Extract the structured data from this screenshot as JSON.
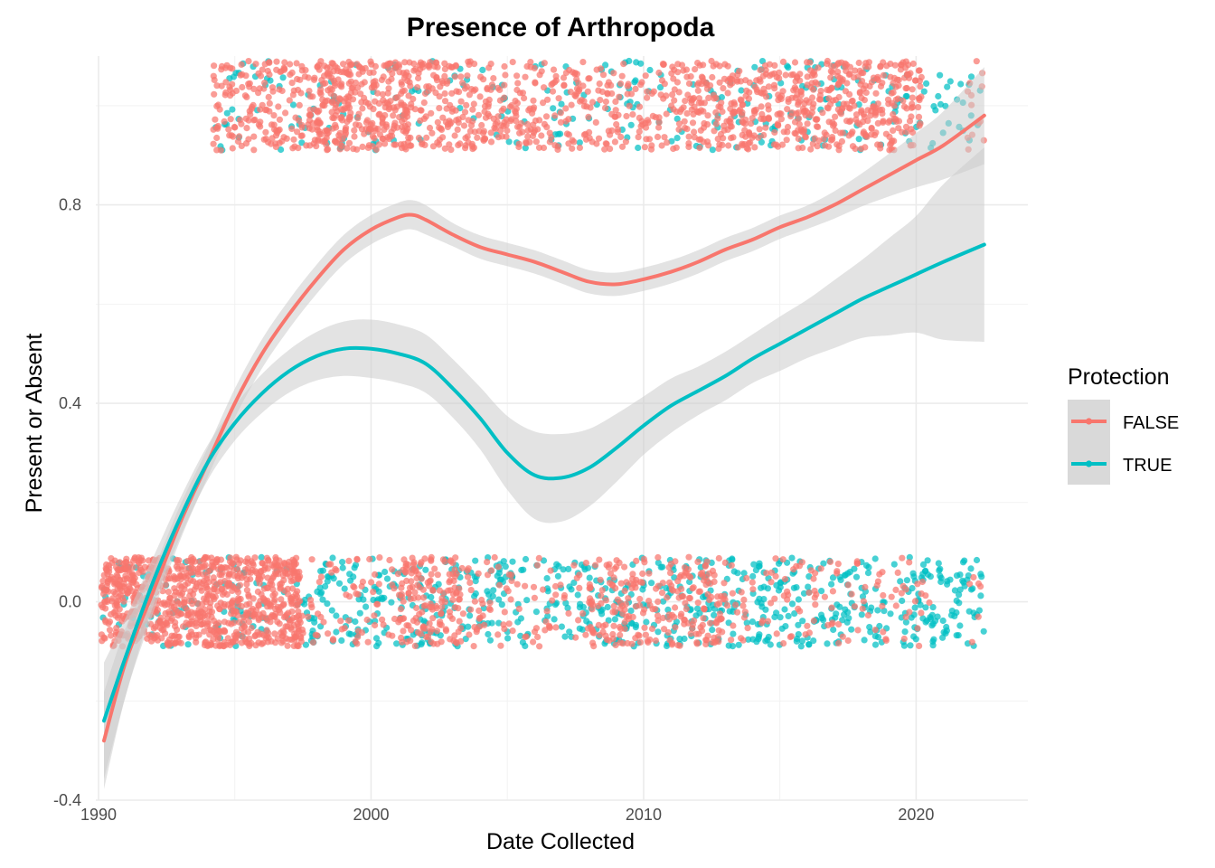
{
  "chart_data": {
    "type": "scatter",
    "title": "Presence of Arthropoda",
    "xlabel": "Date Collected",
    "ylabel": "Present or Absent",
    "xlim": [
      1989.9,
      2024.1
    ],
    "ylim": [
      -0.4,
      1.1
    ],
    "x_ticks": [
      1990,
      2000,
      2010,
      2020
    ],
    "x_tick_labels": [
      "1990",
      "2000",
      "2010",
      "2020"
    ],
    "y_ticks": [
      -0.4,
      0.0,
      0.4,
      0.8
    ],
    "y_tick_labels": [
      "-0.4",
      "0.0",
      "0.4",
      "0.8"
    ],
    "grid": true,
    "legend": {
      "title": "Protection",
      "placement": "right",
      "entries": [
        "FALSE",
        "TRUE"
      ]
    },
    "colors": {
      "FALSE": "#F8766D",
      "TRUE": "#00BFC4",
      "ribbon": "#cccccc"
    },
    "jitter_points": {
      "note_values": "points are jittered around 0 (absent) and 1 (present)",
      "x_range": [
        1990.1,
        2022.5
      ],
      "false_present_density": [
        [
          1990.1,
          1994.2,
          0.0
        ],
        [
          1994.2,
          1998.0,
          1.6
        ],
        [
          1998.0,
          2001.5,
          3.0
        ],
        [
          2001.5,
          2004.0,
          1.8
        ],
        [
          2004.0,
          2009.5,
          1.4
        ],
        [
          2009.5,
          2011.0,
          1.0
        ],
        [
          2011.0,
          2016.0,
          2.0
        ],
        [
          2016.0,
          2020.2,
          2.2
        ],
        [
          2021.8,
          2022.5,
          0.6
        ]
      ],
      "true_present_density": [
        [
          1994.2,
          2009.0,
          0.25
        ],
        [
          2009.0,
          2022.5,
          0.35
        ]
      ],
      "false_absent_density": [
        [
          1990.1,
          1997.5,
          4.0
        ],
        [
          1997.5,
          2001.0,
          0.6
        ],
        [
          2001.0,
          2003.3,
          2.2
        ],
        [
          2003.3,
          2008.0,
          0.6
        ],
        [
          2008.0,
          2013.0,
          1.6
        ],
        [
          2013.0,
          2020.5,
          0.5
        ],
        [
          2021.8,
          2022.5,
          0.3
        ]
      ],
      "true_absent_density": [
        [
          1990.1,
          1997.5,
          0.4
        ],
        [
          1997.5,
          2022.5,
          0.9
        ]
      ]
    },
    "series": [
      {
        "name": "FALSE",
        "x": [
          1990.2,
          1991.0,
          1992.0,
          1993.0,
          1994.0,
          1995.0,
          1996.0,
          1997.0,
          1998.0,
          1999.0,
          2000.0,
          2001.0,
          2001.5,
          2002.0,
          2003.0,
          2004.0,
          2005.0,
          2006.0,
          2007.0,
          2008.0,
          2009.0,
          2010.0,
          2011.0,
          2012.0,
          2013.0,
          2014.0,
          2015.0,
          2016.0,
          2017.0,
          2018.0,
          2019.0,
          2020.0,
          2021.0,
          2022.5
        ],
        "y": [
          -0.28,
          -0.12,
          0.02,
          0.16,
          0.28,
          0.4,
          0.5,
          0.58,
          0.65,
          0.71,
          0.75,
          0.775,
          0.78,
          0.77,
          0.74,
          0.715,
          0.7,
          0.685,
          0.665,
          0.645,
          0.64,
          0.65,
          0.665,
          0.685,
          0.71,
          0.73,
          0.755,
          0.775,
          0.8,
          0.83,
          0.86,
          0.89,
          0.92,
          0.98
        ],
        "se": [
          0.05,
          0.035,
          0.022,
          0.018,
          0.015,
          0.015,
          0.015,
          0.015,
          0.015,
          0.015,
          0.015,
          0.015,
          0.015,
          0.015,
          0.012,
          0.012,
          0.012,
          0.012,
          0.012,
          0.012,
          0.012,
          0.012,
          0.012,
          0.012,
          0.012,
          0.012,
          0.012,
          0.012,
          0.014,
          0.017,
          0.022,
          0.028,
          0.035,
          0.05
        ]
      },
      {
        "name": "TRUE",
        "x": [
          1990.2,
          1991.0,
          1992.0,
          1993.0,
          1994.0,
          1995.0,
          1996.0,
          1997.0,
          1998.0,
          1999.0,
          2000.0,
          2001.0,
          2002.0,
          2003.0,
          2004.0,
          2005.0,
          2006.0,
          2007.0,
          2008.0,
          2009.0,
          2010.0,
          2011.0,
          2012.0,
          2013.0,
          2014.0,
          2015.0,
          2016.0,
          2017.0,
          2018.0,
          2019.0,
          2020.0,
          2021.0,
          2022.5
        ],
        "y": [
          -0.24,
          -0.11,
          0.04,
          0.17,
          0.28,
          0.36,
          0.42,
          0.465,
          0.495,
          0.51,
          0.51,
          0.5,
          0.48,
          0.43,
          0.37,
          0.3,
          0.255,
          0.25,
          0.27,
          0.31,
          0.355,
          0.395,
          0.425,
          0.455,
          0.49,
          0.52,
          0.55,
          0.58,
          0.61,
          0.635,
          0.66,
          0.685,
          0.72
        ],
        "se": [
          0.06,
          0.04,
          0.025,
          0.02,
          0.018,
          0.018,
          0.02,
          0.022,
          0.025,
          0.028,
          0.03,
          0.03,
          0.03,
          0.03,
          0.032,
          0.038,
          0.045,
          0.045,
          0.04,
          0.035,
          0.03,
          0.028,
          0.025,
          0.025,
          0.025,
          0.028,
          0.03,
          0.035,
          0.04,
          0.05,
          0.06,
          0.08,
          0.1
        ]
      }
    ]
  }
}
